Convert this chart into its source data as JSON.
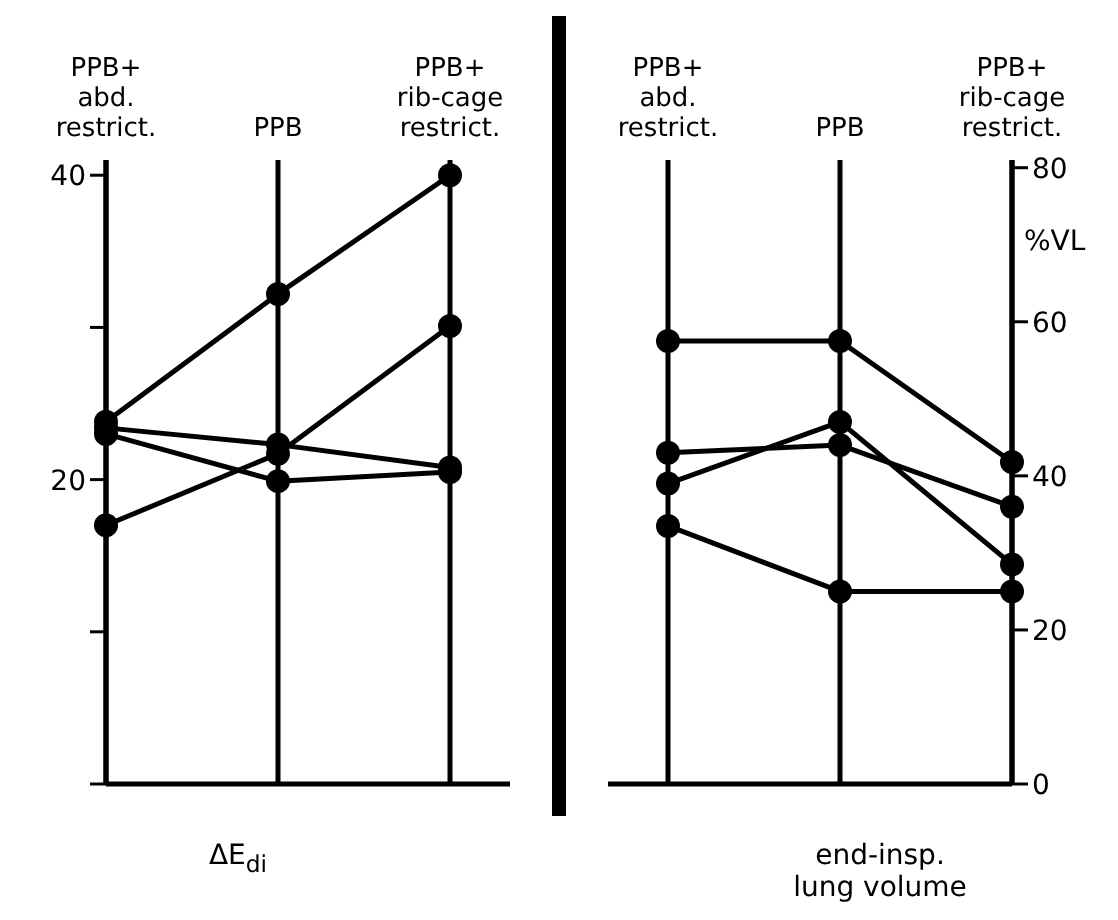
{
  "chart_data": [
    {
      "type": "line",
      "categories": [
        "PPB+\nabd.\nrestrict.",
        "PPB",
        "PPB+\nrib-cage\nrestrict."
      ],
      "xlabel": "ΔE$_{di}$",
      "ylim": [
        0,
        41
      ],
      "yticks": [
        {
          "value": 0,
          "label": null
        },
        {
          "value": 10,
          "label": null
        },
        20,
        {
          "value": 30,
          "label": null
        },
        40
      ],
      "grid": "x",
      "marker": "circle",
      "series": [
        {
          "color": "#000000",
          "values": [
            23.8,
            32.2,
            40
          ]
        },
        {
          "color": "#000000",
          "values": [
            17,
            21.7,
            30.1
          ]
        },
        {
          "color": "#000000",
          "values": [
            23.4,
            22.3,
            20.8
          ]
        },
        {
          "color": "#000000",
          "values": [
            23,
            19.9,
            20.5
          ]
        }
      ]
    },
    {
      "type": "line",
      "categories": [
        "PPB+\nabd.\nrestrict.",
        "PPB",
        "PPB+\nrib-cage\nrestrict."
      ],
      "xlabel": "end-insp.\nlung volume",
      "y2label": "%VL",
      "y2lim": [
        0,
        81
      ],
      "y2ticks": [
        0,
        20,
        40,
        60,
        80
      ],
      "grid": "x",
      "marker": "circle",
      "series": [
        {
          "color": "#000000",
          "axis": "y2",
          "values": [
            57.5,
            57.5,
            41.8
          ]
        },
        {
          "color": "#000000",
          "axis": "y2",
          "values": [
            33.5,
            25,
            25
          ]
        },
        {
          "color": "#000000",
          "axis": "y2",
          "values": [
            39,
            47,
            28.5
          ]
        },
        {
          "color": "#000000",
          "axis": "y2",
          "values": [
            43,
            44,
            36
          ]
        }
      ]
    }
  ]
}
